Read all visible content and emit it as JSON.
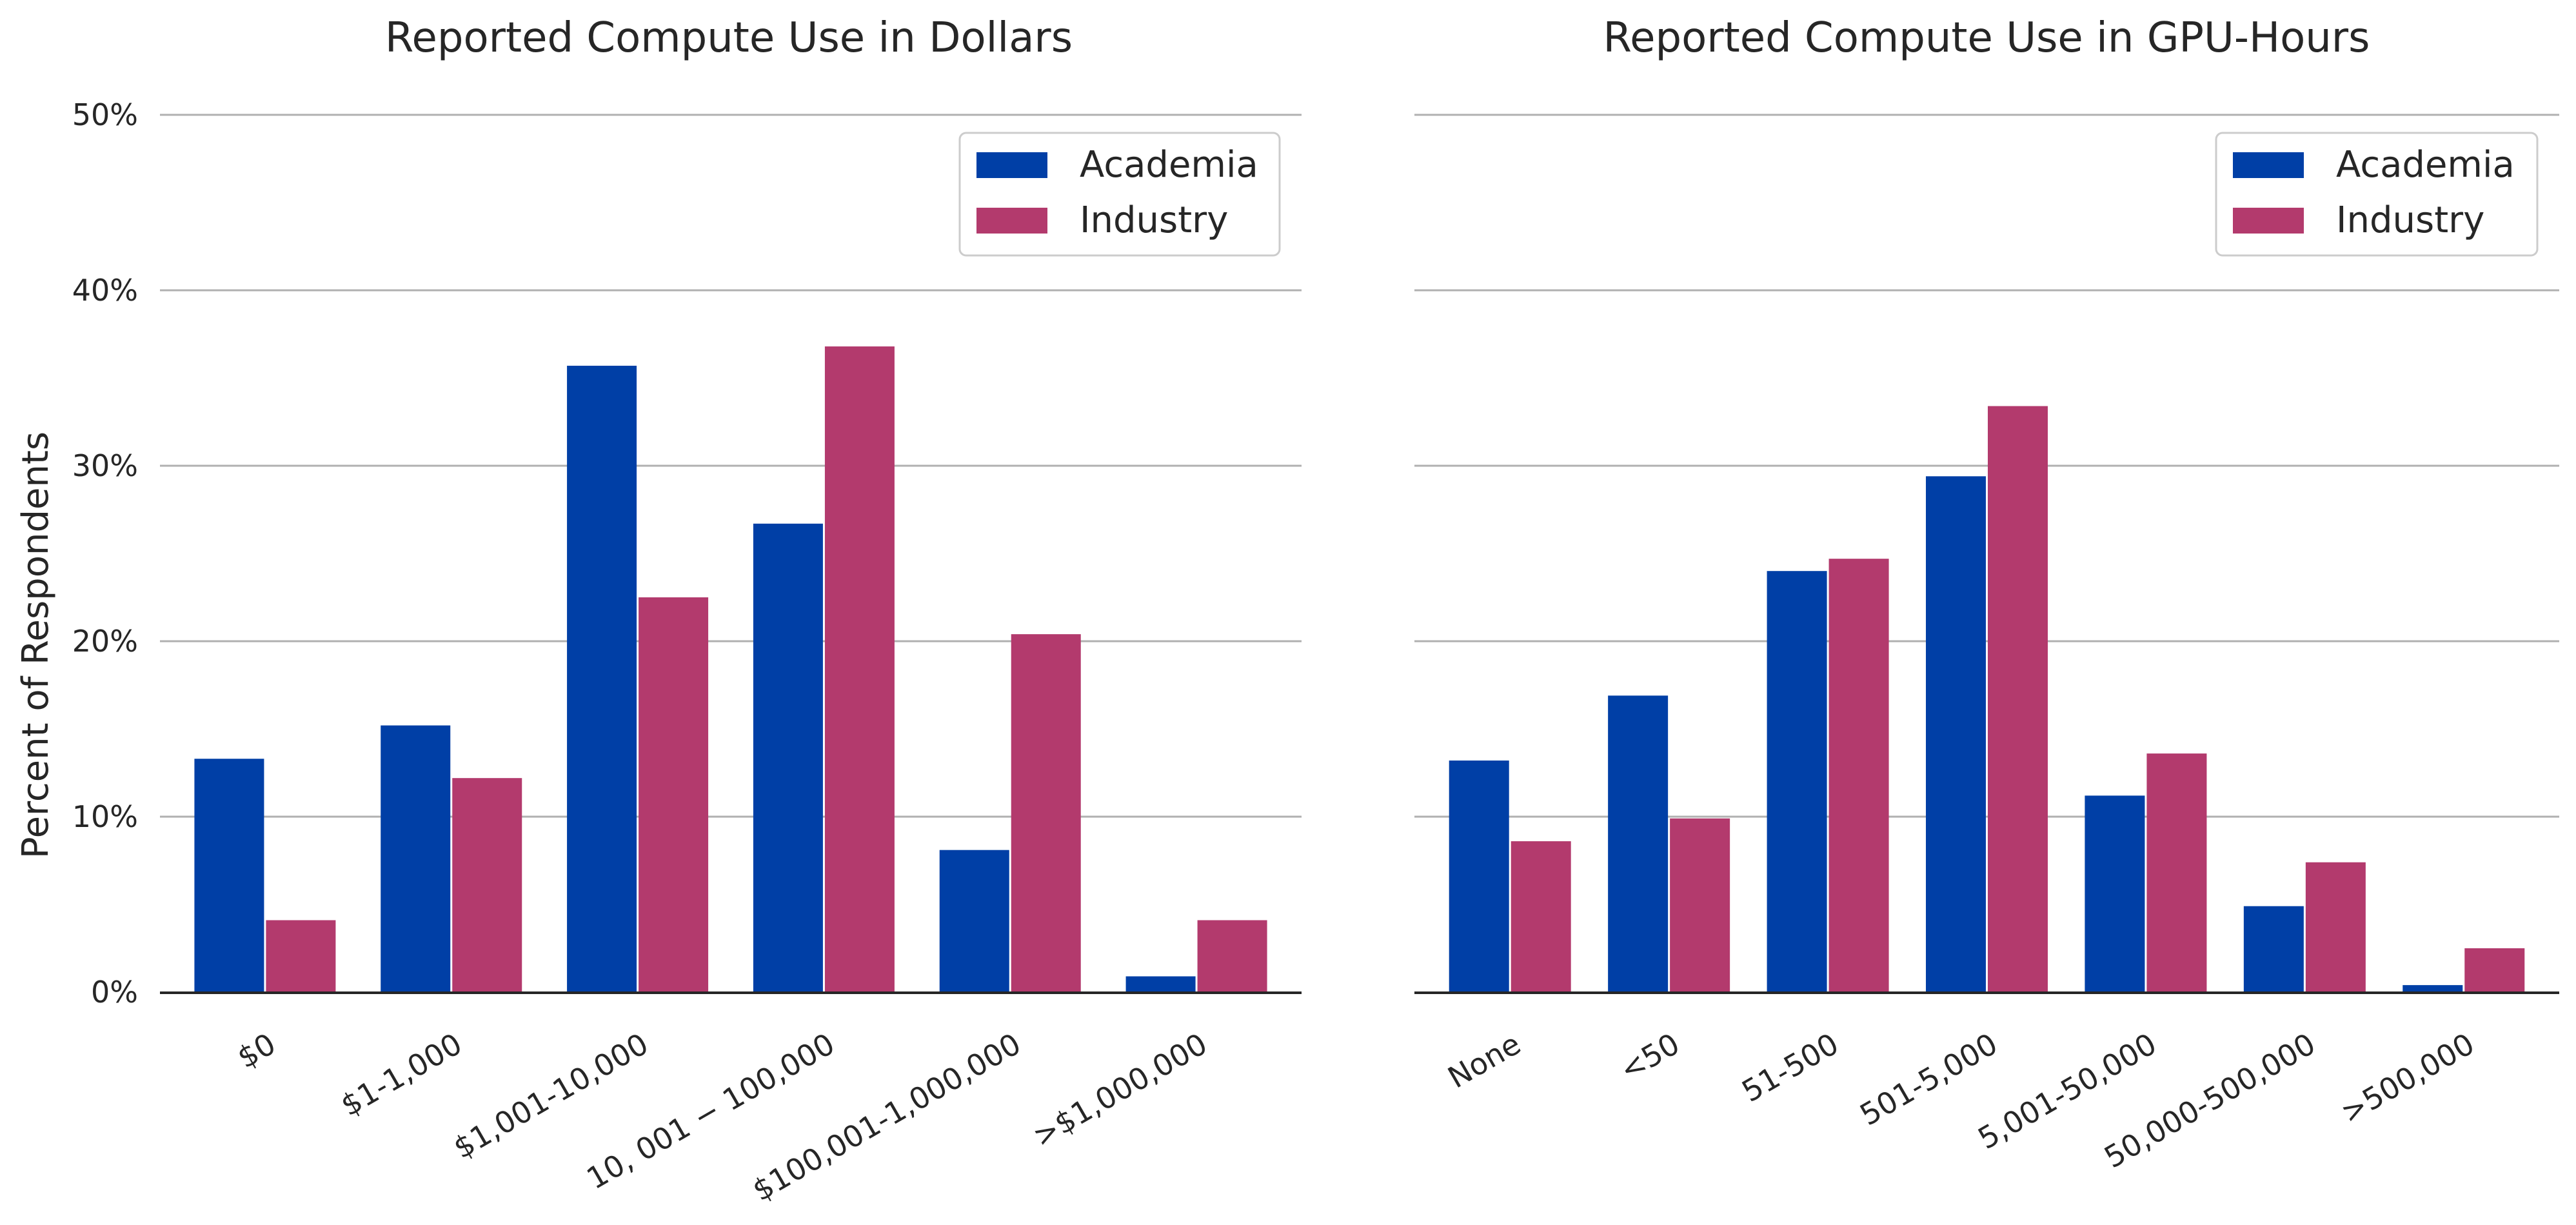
{
  "ylabel": "Percent of Respondents",
  "colors": {
    "academia": "#003fa6",
    "industry": "#b33a6d",
    "grid": "#b0b0b0",
    "axis": "#262626"
  },
  "chart_data": [
    {
      "type": "bar",
      "title": "Reported Compute Use in Dollars",
      "ylabel": "Percent of Respondents",
      "ylim": [
        0,
        50
      ],
      "yticks": [
        "0%",
        "10%",
        "20%",
        "30%",
        "40%",
        "50%"
      ],
      "grid": true,
      "legend_position": "top-right",
      "categories": [
        "$0",
        "$1-1,000",
        "$1,001-10,000",
        "$10,001-$100,000",
        "$100,001-1,000,000",
        ">$1,000,000"
      ],
      "category_labels": [
        "$0",
        "$1-1,000",
        "$1,001-10,000",
        "10, 001 − 100,000",
        "$100,001-1,000,000",
        ">$1,000,000"
      ],
      "series": [
        {
          "name": "Academia",
          "values": [
            13.3,
            15.2,
            35.7,
            26.7,
            8.1,
            0.9
          ]
        },
        {
          "name": "Industry",
          "values": [
            4.1,
            12.2,
            22.5,
            36.8,
            20.4,
            4.1
          ]
        }
      ]
    },
    {
      "type": "bar",
      "title": "Reported Compute Use in GPU-Hours",
      "ylim": [
        0,
        50
      ],
      "grid": true,
      "legend_position": "top-right",
      "categories": [
        "None",
        "<50",
        "51-500",
        "501-5,000",
        "5,001-50,000",
        "50,000-500,000",
        ">500,000"
      ],
      "category_labels": [
        "None",
        "<50",
        "51-500",
        "501-5,000",
        "5,001-50,000",
        "50,000-500,000",
        ">500,000"
      ],
      "series": [
        {
          "name": "Academia",
          "values": [
            13.2,
            16.9,
            24.0,
            29.4,
            11.2,
            4.9,
            0.4
          ]
        },
        {
          "name": "Industry",
          "values": [
            8.6,
            9.9,
            24.7,
            33.4,
            13.6,
            7.4,
            2.5
          ]
        }
      ]
    }
  ]
}
